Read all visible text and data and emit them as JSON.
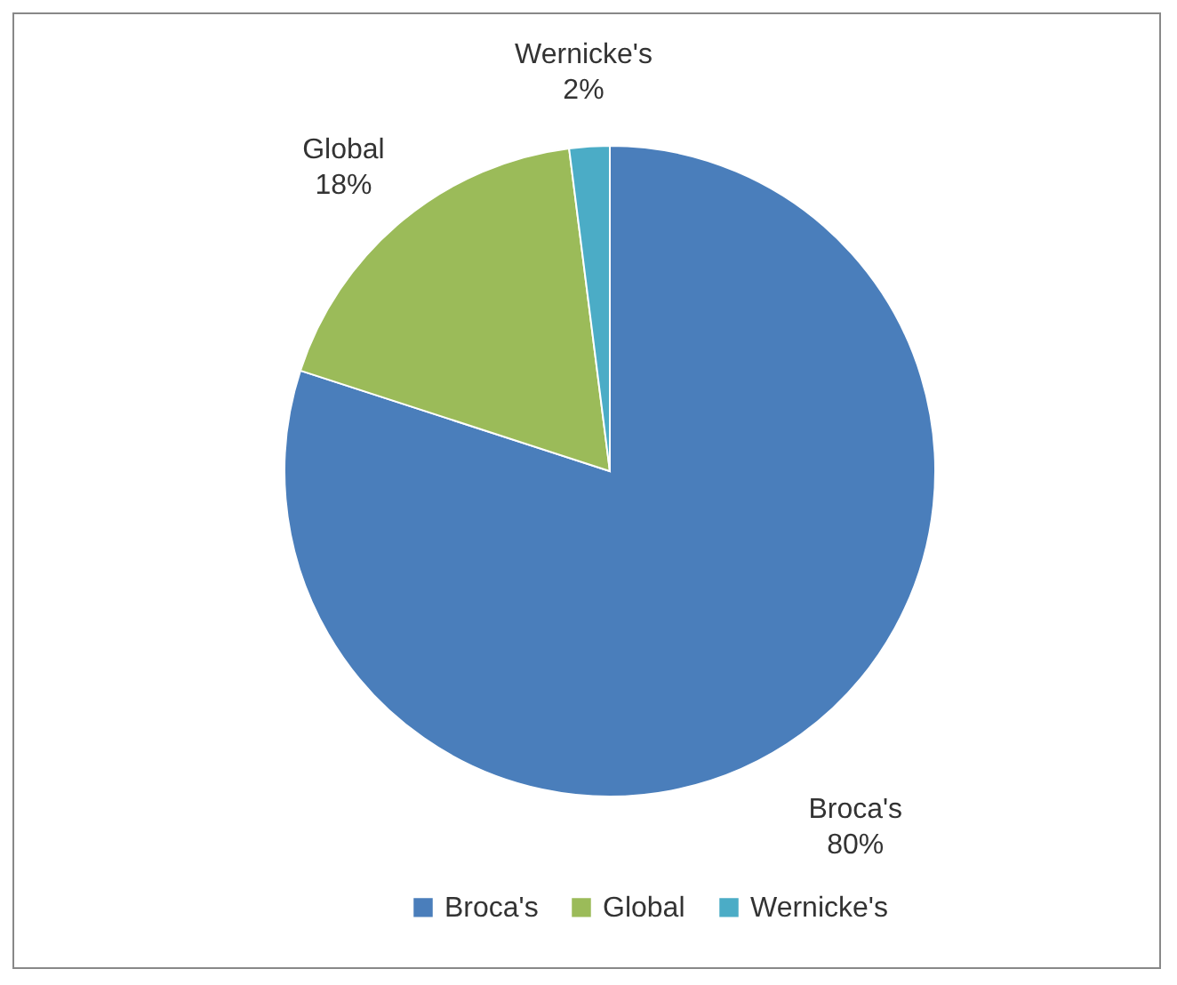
{
  "chart_data": {
    "type": "pie",
    "categories": [
      "Broca's",
      "Global",
      "Wernicke's"
    ],
    "values": [
      80,
      18,
      2
    ],
    "colors": [
      "#4a7ebb",
      "#9bbb59",
      "#4bacc6"
    ],
    "value_labels": [
      "80%",
      "18%",
      "2%"
    ],
    "legend": "bottom"
  }
}
